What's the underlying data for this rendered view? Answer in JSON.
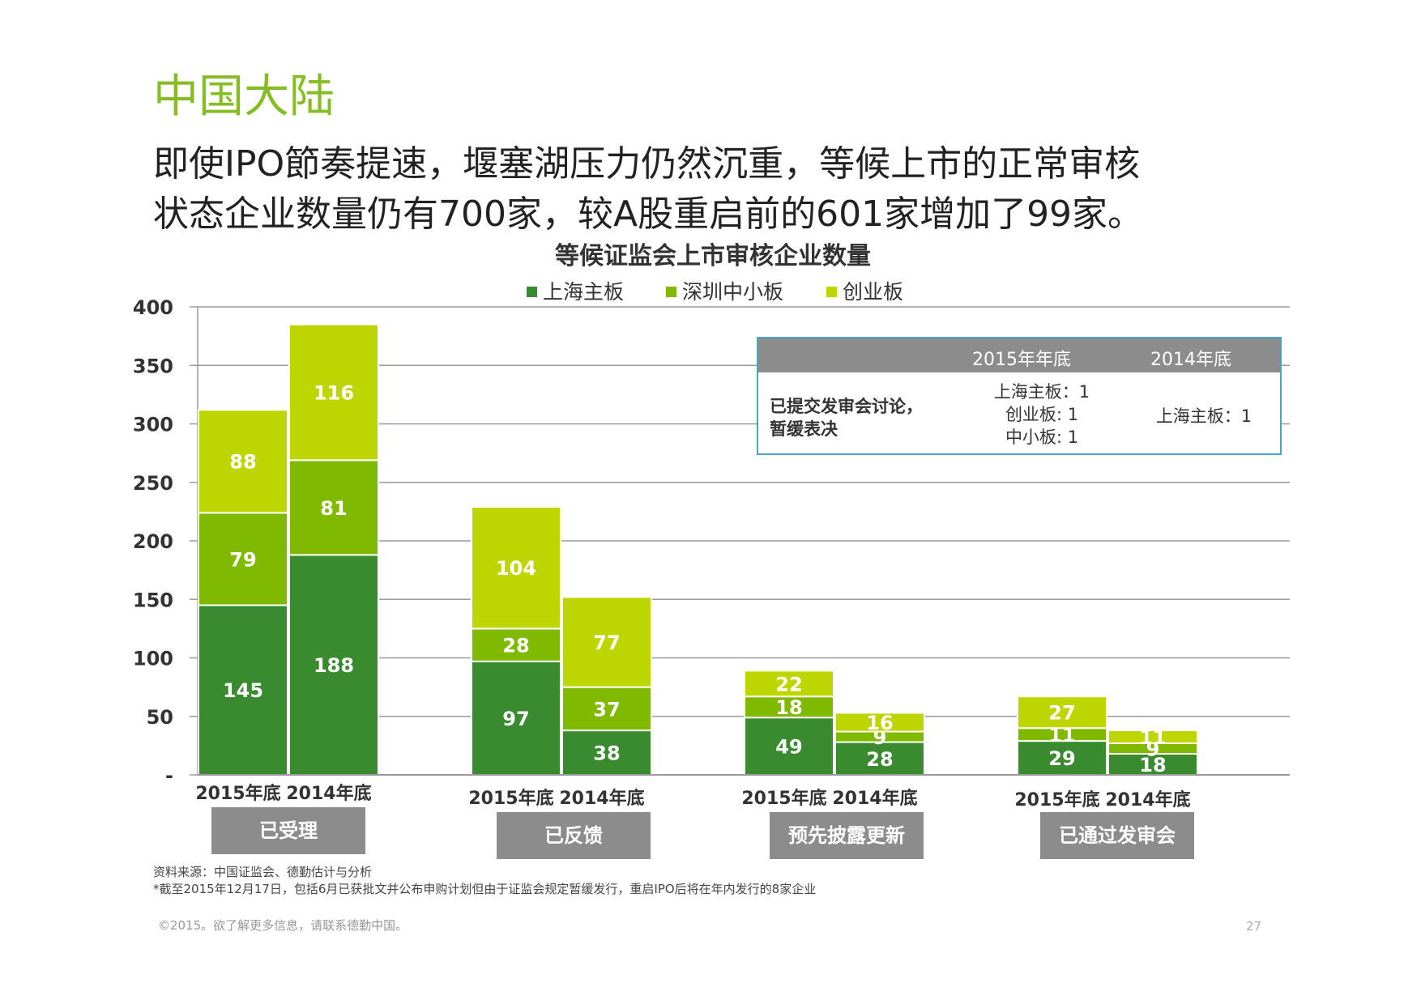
{
  "page": {
    "section_title": "中国大陆",
    "headline_line1": "即使IPO節奏提速，堰塞湖压力仍然沉重，等候上市的正常审核",
    "headline_line2": "状态企业数量仍有700家，较A股重启前的601家增加了99家。",
    "source_note": "资料来源：中国证监会、德勤估计与分析",
    "footnote": "*截至2015年12月17日，包括6月已获批文并公布申购计划但由于证监会规定暂缓发行，重启IPO后将在年内发行的8家企业",
    "copyright": "©2015。欲了解更多信息，请联系德勤中国。",
    "page_number": "27"
  },
  "colors": {
    "shanghai": "#3a8a2f",
    "shenzhen": "#7fba00",
    "chinext": "#bdd500",
    "accent": "#86bc25",
    "gray": "#8c8c8c"
  },
  "info_table": {
    "col_2015": "2015年年底",
    "col_2014": "2014年底",
    "row_label_line1": "已提交发审会讨论，",
    "row_label_line2": "暂缓表决",
    "cell_2015_line1": "上海主板：1",
    "cell_2015_line2": "创业板: 1",
    "cell_2015_line3": "中小板: 1",
    "cell_2014": "上海主板：1"
  },
  "chart_data": {
    "type": "bar",
    "stacked": true,
    "title": "等候证监会上市审核企业数量",
    "legend_position": "top",
    "ylim": [
      0,
      400
    ],
    "yticks": [
      0,
      50,
      100,
      150,
      200,
      250,
      300,
      350,
      400
    ],
    "ytick_labels": [
      "-",
      "50",
      "100",
      "150",
      "200",
      "250",
      "300",
      "350",
      "400"
    ],
    "groups": [
      "已受理",
      "已反馈",
      "预先披露更新",
      "已通过发审会"
    ],
    "categories": [
      "2015年底",
      "2014年底",
      "2015年底",
      "2014年底",
      "2015年底",
      "2014年底",
      "2015年底",
      "2014年底"
    ],
    "series": [
      {
        "name": "上海主板",
        "values": [
          145,
          188,
          97,
          38,
          49,
          28,
          29,
          18
        ]
      },
      {
        "name": "深圳中小板",
        "values": [
          79,
          81,
          28,
          37,
          18,
          9,
          11,
          9
        ]
      },
      {
        "name": "创业板",
        "values": [
          88,
          116,
          104,
          77,
          22,
          16,
          27,
          11
        ]
      }
    ]
  }
}
